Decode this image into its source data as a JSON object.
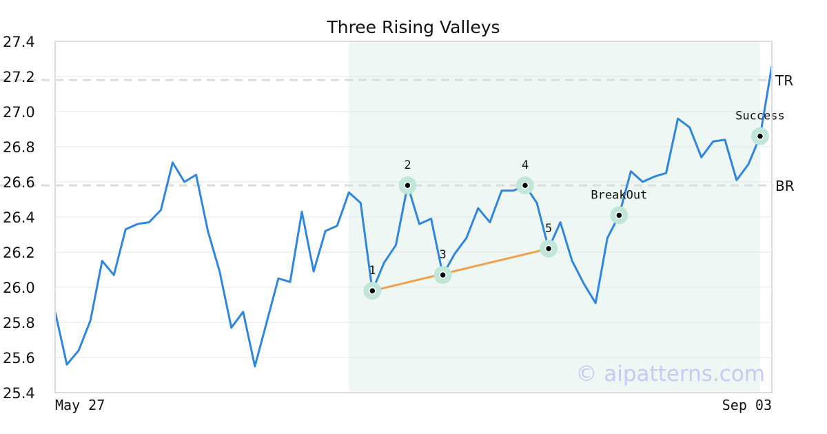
{
  "chart_data": {
    "type": "line",
    "title": "Three Rising Valleys",
    "xlabel": "",
    "ylabel": "",
    "ylim": [
      25.4,
      27.4
    ],
    "yticks": [
      "25.4",
      "25.6",
      "25.8",
      "26.0",
      "26.2",
      "26.4",
      "26.6",
      "26.8",
      "27.0",
      "27.2",
      "27.4"
    ],
    "xtick_labels": [
      "May 27",
      "Sep 03"
    ],
    "grid": true,
    "series": [
      {
        "color": "#2e86de",
        "values": [
          25.86,
          25.56,
          25.64,
          25.81,
          26.15,
          26.07,
          26.33,
          26.36,
          26.37,
          26.44,
          26.71,
          26.6,
          26.64,
          26.32,
          26.09,
          25.77,
          25.86,
          25.55,
          25.8,
          26.05,
          26.03,
          26.43,
          26.09,
          26.32,
          26.35,
          26.54,
          26.48,
          25.98,
          26.14,
          26.24,
          26.58,
          26.36,
          26.39,
          26.07,
          26.19,
          26.28,
          26.45,
          26.37,
          26.55,
          26.55,
          26.58,
          26.48,
          26.22,
          26.37,
          26.15,
          26.02,
          25.91,
          26.28,
          26.41,
          26.66,
          26.6,
          26.63,
          26.65,
          26.96,
          26.91,
          26.74,
          26.83,
          26.84,
          26.61,
          26.7,
          26.86,
          27.26
        ]
      }
    ],
    "reference_lines": [
      {
        "label": "TR",
        "value": 27.18
      },
      {
        "label": "BR",
        "value": 26.58
      }
    ],
    "highlight_range": {
      "start_index": 25,
      "end_index": 60,
      "color": "#eef7f3"
    },
    "points": [
      {
        "label": "1",
        "index": 27,
        "value": 25.98
      },
      {
        "label": "2",
        "index": 30,
        "value": 26.58
      },
      {
        "label": "3",
        "index": 33,
        "value": 26.07
      },
      {
        "label": "4",
        "index": 40,
        "value": 26.58
      },
      {
        "label": "5",
        "index": 42,
        "value": 26.22
      },
      {
        "label": "BreakOut",
        "index": 48,
        "value": 26.41
      },
      {
        "label": "Success",
        "index": 60,
        "value": 26.86
      }
    ],
    "trendline": {
      "from_point": 0,
      "to_point": 4,
      "color": "#f0a04b"
    },
    "watermark": "© aipatterns.com",
    "colors": {
      "line": "#2e86de",
      "marker_halo": "#bfe6d6",
      "marker_dot": "#000000",
      "grid": "#e6e6e6",
      "ref_line": "#dcdcdc",
      "frame": "#dddddd"
    }
  }
}
